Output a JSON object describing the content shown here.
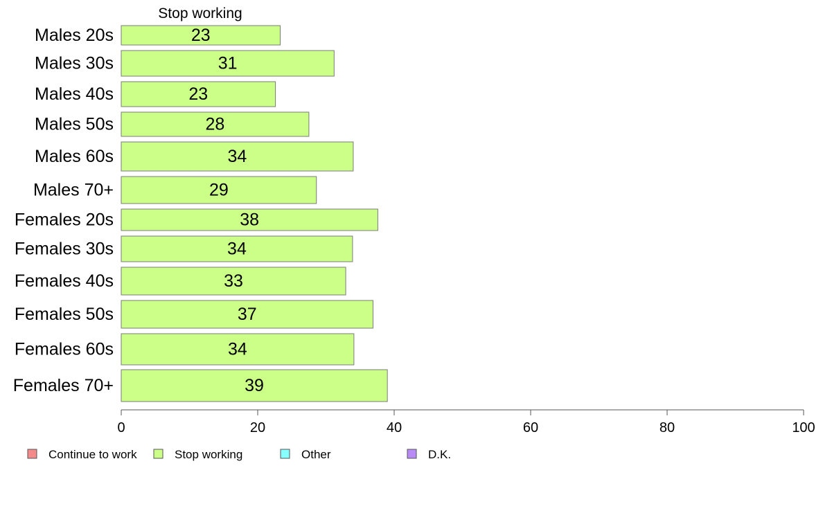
{
  "chart_data": {
    "type": "bar",
    "orientation": "horizontal",
    "stacked": true,
    "title": "",
    "column_header": "Stop working",
    "xlabel": "",
    "ylabel": "",
    "xlim": [
      0,
      100
    ],
    "x_ticks": [
      0,
      20,
      40,
      60,
      80,
      100
    ],
    "grid": false,
    "legend_position": "bottom",
    "categories": [
      "Males 20s",
      "Males 30s",
      "Males 40s",
      "Males 50s",
      "Males 60s",
      "Males 70+",
      "Females 20s",
      "Females 30s",
      "Females 40s",
      "Females 50s",
      "Females 60s",
      "Females 70+"
    ],
    "series": [
      {
        "name": "Stop working",
        "color": "#ccff88",
        "values": [
          23.3,
          31.2,
          22.6,
          27.5,
          34.0,
          28.6,
          37.6,
          33.9,
          32.9,
          36.9,
          34.1,
          39.0
        ],
        "labels": [
          "23",
          "31",
          "23",
          "28",
          "34",
          "29",
          "38",
          "34",
          "33",
          "37",
          "34",
          "39"
        ]
      }
    ],
    "legend": [
      {
        "label": "Continue to work",
        "color": "#f58a8a"
      },
      {
        "label": "Stop working",
        "color": "#ccff88"
      },
      {
        "label": "Other",
        "color": "#88ffff"
      },
      {
        "label": "D.K.",
        "color": "#b88af5"
      }
    ]
  }
}
